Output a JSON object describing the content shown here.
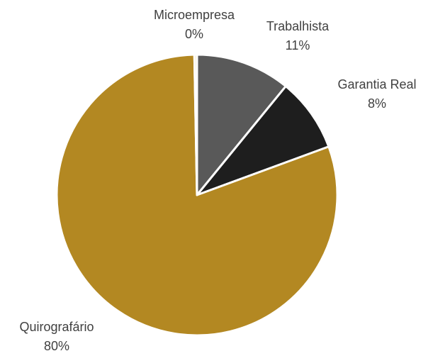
{
  "chart_data": {
    "type": "pie",
    "categories": [
      "Trabalhista",
      "Garantia Real",
      "Quirografário",
      "Microempresa"
    ],
    "values": [
      10.9,
      8.5,
      80.3,
      0.3
    ],
    "value_labels": [
      "11%",
      "8%",
      "80%",
      "0%"
    ],
    "colors": [
      "#595959",
      "#1e1e1e",
      "#b38822",
      "#f3e3b5"
    ]
  }
}
